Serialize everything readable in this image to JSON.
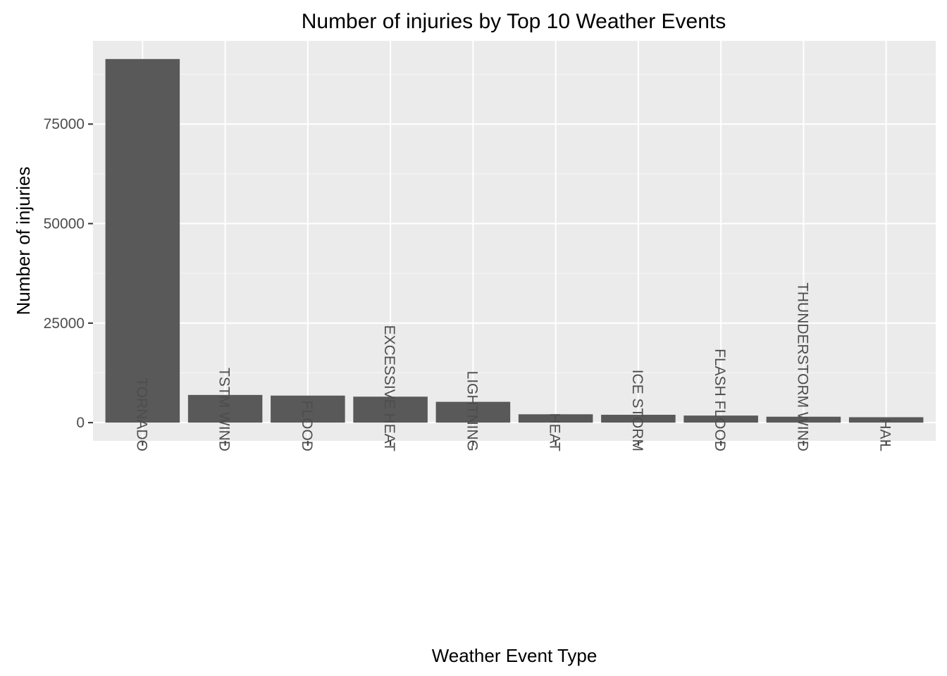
{
  "chart_data": {
    "type": "bar",
    "title": "Number of injuries by Top 10 Weather Events",
    "xlabel": "Weather Event Type",
    "ylabel": "Number of injuries",
    "categories": [
      "TORNADO",
      "TSTM WIND",
      "FLOOD",
      "EXCESSIVE HEAT",
      "LIGHTNING",
      "HEAT",
      "ICE STORM",
      "FLASH FLOOD",
      "THUNDERSTORM WIND",
      "HAIL"
    ],
    "values": [
      91346,
      6957,
      6789,
      6525,
      5230,
      2100,
      1975,
      1777,
      1488,
      1361
    ],
    "ylim": [
      -4567,
      95913
    ],
    "yticks": [
      0,
      25000,
      50000,
      75000
    ],
    "ytick_labels": [
      "0",
      "25000",
      "50000",
      "75000"
    ],
    "grid": true,
    "legend": "none",
    "colors": {
      "bar": "#595959",
      "panel": "#ebebeb",
      "grid_major": "#ffffff",
      "grid_minor": "#f5f5f5",
      "tick": "#333333"
    }
  }
}
